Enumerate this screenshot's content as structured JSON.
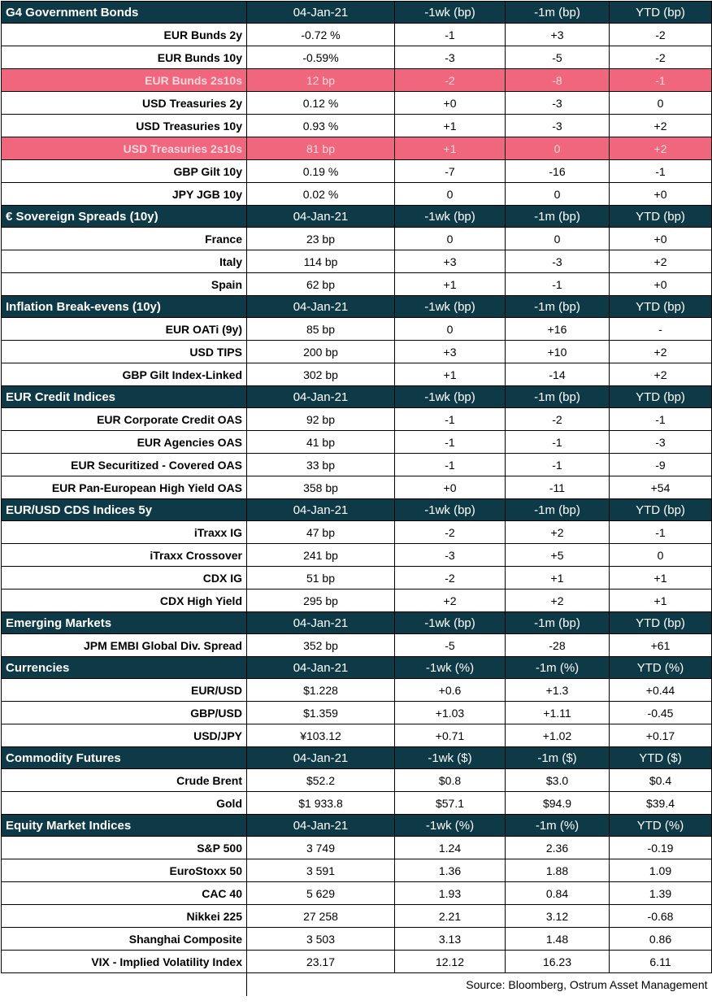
{
  "sections": [
    {
      "title": "G4 Government Bonds",
      "headers": [
        "04-Jan-21",
        "-1wk (bp)",
        "-1m (bp)",
        "YTD (bp)"
      ],
      "rows": [
        {
          "name": "EUR Bunds 2y",
          "values": [
            "-0.72 %",
            "-1",
            "+3",
            "-2"
          ],
          "highlight": false
        },
        {
          "name": "EUR Bunds 10y",
          "values": [
            "-0.59%",
            "-3",
            "-5",
            "-2"
          ],
          "highlight": false
        },
        {
          "name": "EUR Bunds 2s10s",
          "values": [
            "12 bp",
            "-2",
            "-8",
            "-1"
          ],
          "highlight": true
        },
        {
          "name": "USD Treasuries 2y",
          "values": [
            "0.12 %",
            "+0",
            "-3",
            "0"
          ],
          "highlight": false
        },
        {
          "name": "USD Treasuries 10y",
          "values": [
            "0.93 %",
            "+1",
            "-3",
            "+2"
          ],
          "highlight": false
        },
        {
          "name": "USD Treasuries 2s10s",
          "values": [
            "81 bp",
            "+1",
            "0",
            "+2"
          ],
          "highlight": true
        },
        {
          "name": "GBP Gilt 10y",
          "values": [
            "0.19 %",
            "-7",
            "-16",
            "-1"
          ],
          "highlight": false
        },
        {
          "name": "JPY JGB  10y",
          "values": [
            "0.02 %",
            "0",
            "0",
            "+0"
          ],
          "highlight": false
        }
      ]
    },
    {
      "title": "€ Sovereign Spreads (10y)",
      "headers": [
        "04-Jan-21",
        "-1wk (bp)",
        "-1m (bp)",
        "YTD (bp)"
      ],
      "rows": [
        {
          "name": "France",
          "values": [
            "23 bp",
            "0",
            "0",
            "+0"
          ]
        },
        {
          "name": "Italy",
          "values": [
            "114 bp",
            "+3",
            "-3",
            "+2"
          ]
        },
        {
          "name": "Spain",
          "values": [
            "62 bp",
            "+1",
            "-1",
            "+0"
          ]
        }
      ]
    },
    {
      "title": "Inflation Break-evens (10y)",
      "headers": [
        "04-Jan-21",
        "-1wk (bp)",
        "-1m (bp)",
        "YTD (bp)"
      ],
      "rows": [
        {
          "name": "EUR OATi (9y)",
          "values": [
            "85 bp",
            "0",
            "+16",
            "-"
          ]
        },
        {
          "name": "USD TIPS",
          "values": [
            "200 bp",
            "+3",
            "+10",
            "+2"
          ]
        },
        {
          "name": "GBP Gilt Index-Linked",
          "values": [
            "302 bp",
            "+1",
            "-14",
            "+2"
          ]
        }
      ]
    },
    {
      "title": "EUR Credit Indices",
      "headers": [
        "04-Jan-21",
        "-1wk (bp)",
        "-1m (bp)",
        "YTD (bp)"
      ],
      "rows": [
        {
          "name": "EUR Corporate Credit OAS",
          "values": [
            "92 bp",
            "-1",
            "-2",
            "-1"
          ]
        },
        {
          "name": "EUR Agencies OAS",
          "values": [
            "41 bp",
            "-1",
            "-1",
            "-3"
          ]
        },
        {
          "name": "EUR Securitized - Covered OAS",
          "values": [
            "33 bp",
            "-1",
            "-1",
            "-9"
          ]
        },
        {
          "name": "EUR Pan-European High Yield OAS",
          "values": [
            "358 bp",
            "+0",
            "-11",
            "+54"
          ]
        }
      ]
    },
    {
      "title": "EUR/USD CDS Indices 5y",
      "headers": [
        "04-Jan-21",
        "-1wk (bp)",
        "-1m (bp)",
        "YTD (bp)"
      ],
      "rows": [
        {
          "name": "iTraxx IG",
          "values": [
            "47 bp",
            "-2",
            "+2",
            "-1"
          ]
        },
        {
          "name": "iTraxx Crossover",
          "values": [
            "241 bp",
            "-3",
            "+5",
            "0"
          ]
        },
        {
          "name": "CDX IG",
          "values": [
            "51 bp",
            "-2",
            "+1",
            "+1"
          ]
        },
        {
          "name": "CDX High Yield",
          "values": [
            "295 bp",
            "+2",
            "+2",
            "+1"
          ]
        }
      ]
    },
    {
      "title": "Emerging Markets",
      "headers": [
        "04-Jan-21",
        "-1wk (bp)",
        "-1m (bp)",
        "YTD (bp)"
      ],
      "rows": [
        {
          "name": "JPM EMBI Global Div. Spread",
          "values": [
            "352 bp",
            "-5",
            "-28",
            "+61"
          ]
        }
      ]
    },
    {
      "title": "Currencies",
      "headers": [
        "04-Jan-21",
        "-1wk (%)",
        "-1m (%)",
        "YTD (%)"
      ],
      "rows": [
        {
          "name": "EUR/USD",
          "values": [
            "$1.228",
            "+0.6",
            "+1.3",
            "+0.44"
          ]
        },
        {
          "name": "GBP/USD",
          "values": [
            "$1.359",
            "+1.03",
            "+1.11",
            "-0.45"
          ]
        },
        {
          "name": "USD/JPY",
          "values": [
            "¥103.12",
            "+0.71",
            "+1.02",
            "+0.17"
          ]
        }
      ]
    },
    {
      "title": "Commodity Futures",
      "headers": [
        "04-Jan-21",
        "-1wk ($)",
        "-1m ($)",
        "YTD ($)"
      ],
      "rows": [
        {
          "name": "Crude Brent",
          "values": [
            "$52.2",
            "$0.8",
            "$3.0",
            "$0.4"
          ]
        },
        {
          "name": "Gold",
          "values": [
            "$1 933.8",
            "$57.1",
            "$94.9",
            "$39.4"
          ]
        }
      ]
    },
    {
      "title": "Equity Market Indices",
      "headers": [
        "04-Jan-21",
        "-1wk (%)",
        "-1m (%)",
        "YTD (%)"
      ],
      "rows": [
        {
          "name": "S&P 500",
          "values": [
            "3 749",
            "1.24",
            "2.36",
            "-0.19"
          ]
        },
        {
          "name": "EuroStoxx 50",
          "values": [
            "3 591",
            "1.36",
            "1.88",
            "1.09"
          ]
        },
        {
          "name": "CAC 40",
          "values": [
            "5 629",
            "1.93",
            "0.84",
            "1.39"
          ]
        },
        {
          "name": "Nikkei 225",
          "values": [
            "27 258",
            "2.21",
            "3.12",
            "-0.68"
          ]
        },
        {
          "name": "Shanghai Composite",
          "values": [
            "3 503",
            "3.13",
            "1.48",
            "0.86"
          ]
        },
        {
          "name": "VIX - Implied Volatility Index",
          "values": [
            "23.17",
            "12.12",
            "16.23",
            "6.11"
          ]
        }
      ]
    }
  ],
  "source": "Source: Bloomberg, Ostrum Asset Management",
  "colors": {
    "header_bg": "#0e3a48",
    "highlight_bg": "#f0667d",
    "highlight_text": "#ffd7de"
  }
}
